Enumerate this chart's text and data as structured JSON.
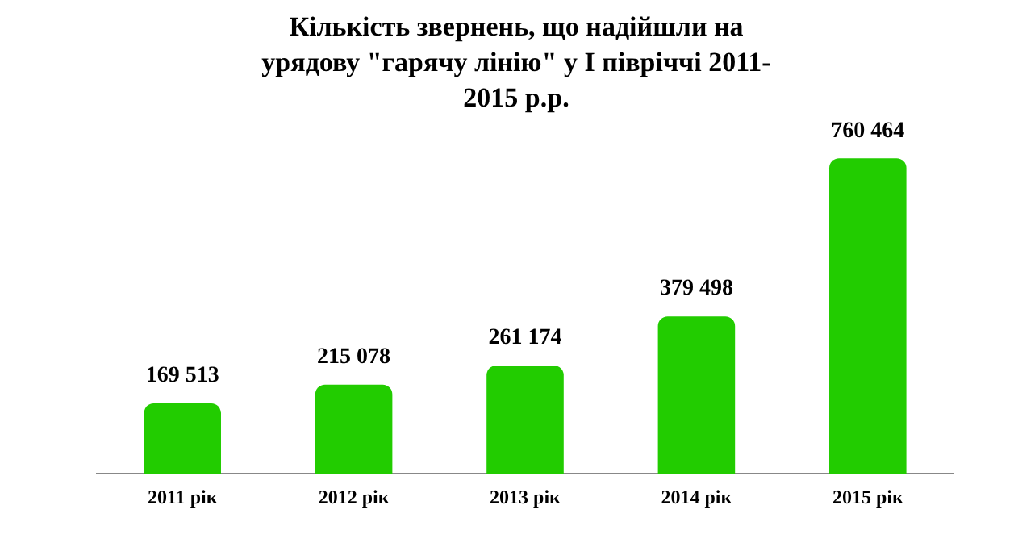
{
  "chart_data": {
    "type": "bar",
    "title": "Кількість звернень, що надійшли на урядову \"гарячу лінію\" у І півріччі 2011-2015 р.р.",
    "categories": [
      "2011 рік",
      "2012 рік",
      "2013 рік",
      "2014 рік",
      "2015 рік"
    ],
    "values": [
      169513,
      215078,
      261174,
      379498,
      760464
    ],
    "value_labels": [
      "169 513",
      "215 078",
      "261 174",
      "379 498",
      "760 464"
    ],
    "color": "#22cc00",
    "grid": false,
    "legend": false
  }
}
